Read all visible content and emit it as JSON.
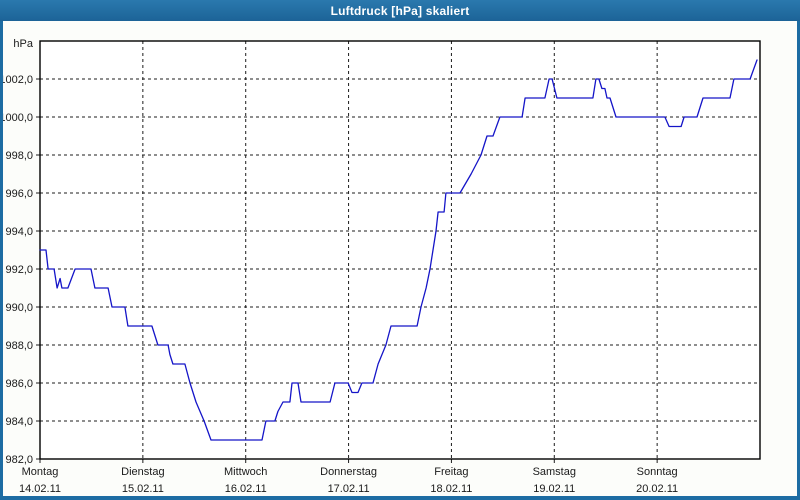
{
  "window": {
    "title": "Luftdruck [hPa] skaliert"
  },
  "colors": {
    "frame_blue": "#1d6ca3",
    "titlebar_top": "#2a79ae",
    "titlebar_bottom": "#1c6397",
    "title_text": "#ffffff",
    "content_bg": "#fcfdfa",
    "plot_bg": "#ffffff",
    "grid": "#1c1c1c",
    "text": "#1a1a1a",
    "line": "#1515c8"
  },
  "chart_data": {
    "type": "line",
    "title": "Luftdruck [hPa] skaliert",
    "xlabel": "",
    "ylabel": "hPa",
    "ylim": [
      982,
      1004
    ],
    "y_tick_step": 2,
    "grid": "dashed",
    "legend": "none",
    "y_ticks": [
      {
        "value": 982,
        "label": "982,0"
      },
      {
        "value": 984,
        "label": "984,0"
      },
      {
        "value": 986,
        "label": "986,0"
      },
      {
        "value": 988,
        "label": "988,0"
      },
      {
        "value": 990,
        "label": "990,0"
      },
      {
        "value": 992,
        "label": "992,0"
      },
      {
        "value": 994,
        "label": "994,0"
      },
      {
        "value": 996,
        "label": "996,0"
      },
      {
        "value": 998,
        "label": "998,0"
      },
      {
        "value": 1000,
        "label": "1000,0"
      },
      {
        "value": 1002,
        "label": "1002,0"
      }
    ],
    "x_range_hours": 168,
    "x_days": [
      {
        "name": "Montag",
        "date": "14.02.11"
      },
      {
        "name": "Dienstag",
        "date": "15.02.11"
      },
      {
        "name": "Mittwoch",
        "date": "16.02.11"
      },
      {
        "name": "Donnerstag",
        "date": "17.02.11"
      },
      {
        "name": "Freitag",
        "date": "18.02.11"
      },
      {
        "name": "Samstag",
        "date": "19.02.11"
      },
      {
        "name": "Sonntag",
        "date": "20.02.11"
      }
    ],
    "series": [
      {
        "name": "Luftdruck",
        "unit": "hPa",
        "points": [
          [
            0,
            993
          ],
          [
            1.4,
            993
          ],
          [
            1.9,
            992
          ],
          [
            3.3,
            992
          ],
          [
            4,
            991
          ],
          [
            4.7,
            991.5
          ],
          [
            5.1,
            991
          ],
          [
            6.5,
            991
          ],
          [
            8.2,
            992
          ],
          [
            11.9,
            992
          ],
          [
            12.8,
            991
          ],
          [
            15.9,
            991
          ],
          [
            16.8,
            990
          ],
          [
            19.8,
            990
          ],
          [
            20.5,
            989
          ],
          [
            26.1,
            989
          ],
          [
            27.5,
            988
          ],
          [
            29.9,
            988
          ],
          [
            30.3,
            987.5
          ],
          [
            31,
            987
          ],
          [
            33.8,
            987
          ],
          [
            35,
            986
          ],
          [
            36.4,
            985
          ],
          [
            38.3,
            984
          ],
          [
            39.9,
            983
          ],
          [
            51.8,
            983
          ],
          [
            52.7,
            984
          ],
          [
            54.8,
            984
          ],
          [
            55.5,
            984.5
          ],
          [
            56.7,
            985
          ],
          [
            58.3,
            985
          ],
          [
            58.8,
            986
          ],
          [
            60.2,
            986
          ],
          [
            60.9,
            985
          ],
          [
            67.7,
            985
          ],
          [
            68.8,
            986
          ],
          [
            71.9,
            986
          ],
          [
            72.8,
            985.5
          ],
          [
            74.2,
            985.5
          ],
          [
            75.1,
            986
          ],
          [
            77.7,
            986
          ],
          [
            78.9,
            987
          ],
          [
            80.7,
            988
          ],
          [
            81.9,
            989
          ],
          [
            88,
            989
          ],
          [
            88.9,
            990
          ],
          [
            90.1,
            991
          ],
          [
            91,
            992
          ],
          [
            91.7,
            993
          ],
          [
            92.4,
            994
          ],
          [
            92.9,
            995
          ],
          [
            94.3,
            995
          ],
          [
            94.7,
            996
          ],
          [
            98,
            996
          ],
          [
            100.6,
            997
          ],
          [
            102.9,
            998
          ],
          [
            104.3,
            999
          ],
          [
            105.7,
            999
          ],
          [
            107.3,
            1000
          ],
          [
            112.5,
            1000
          ],
          [
            113.2,
            1001
          ],
          [
            117.8,
            1001
          ],
          [
            118.8,
            1002
          ],
          [
            119.5,
            1002
          ],
          [
            120.6,
            1001
          ],
          [
            129,
            1001
          ],
          [
            129.7,
            1002
          ],
          [
            130.4,
            1002
          ],
          [
            131.1,
            1001.5
          ],
          [
            131.8,
            1001.5
          ],
          [
            132.3,
            1001
          ],
          [
            133,
            1001
          ],
          [
            134.4,
            1000
          ],
          [
            145.8,
            1000
          ],
          [
            146.8,
            999.5
          ],
          [
            149.6,
            999.5
          ],
          [
            150.3,
            1000
          ],
          [
            153.3,
            1000
          ],
          [
            154.7,
            1001
          ],
          [
            161,
            1001
          ],
          [
            161.9,
            1002
          ],
          [
            165.7,
            1002
          ],
          [
            167.3,
            1003
          ]
        ]
      }
    ]
  }
}
